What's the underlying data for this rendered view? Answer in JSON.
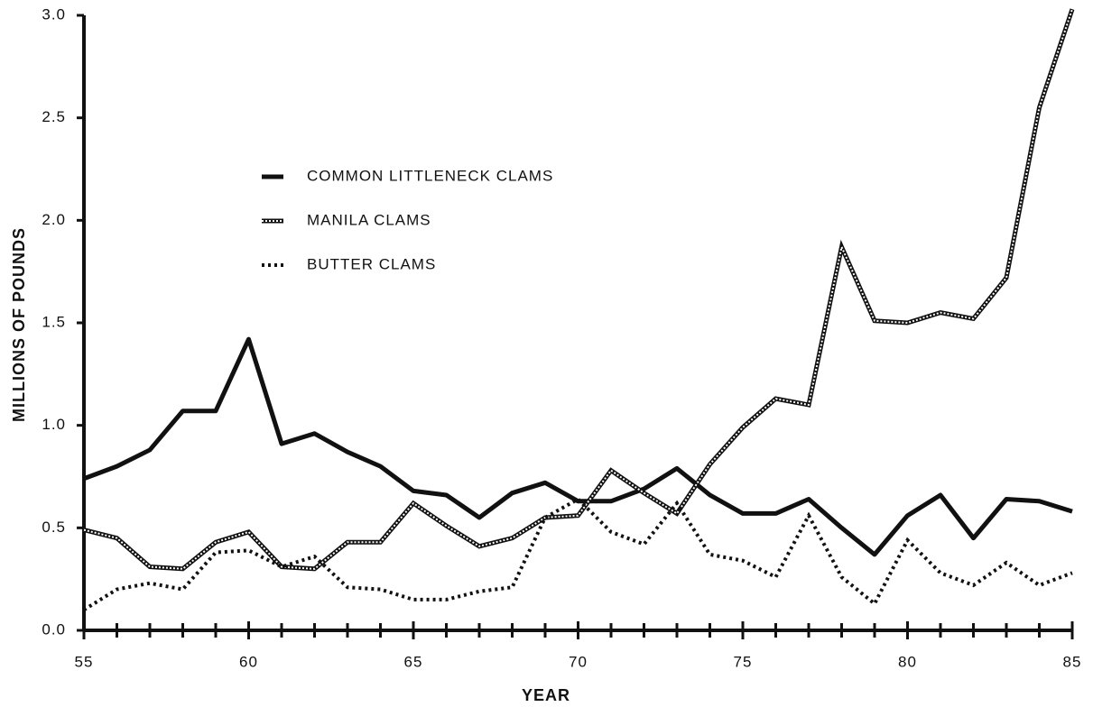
{
  "chart_data": {
    "type": "line",
    "x_label": "YEAR",
    "y_label": "MILLIONS OF POUNDS",
    "x": [
      55,
      56,
      57,
      58,
      59,
      60,
      61,
      62,
      63,
      64,
      65,
      66,
      67,
      68,
      69,
      70,
      71,
      72,
      73,
      74,
      75,
      76,
      77,
      78,
      79,
      80,
      81,
      82,
      83,
      84,
      85
    ],
    "series": [
      {
        "name": "COMMON LITTLENECK CLAMS",
        "color": "#111111",
        "line_style": "solid",
        "values": [
          0.74,
          0.8,
          0.88,
          1.07,
          1.07,
          1.42,
          0.91,
          0.96,
          0.87,
          0.8,
          0.68,
          0.66,
          0.55,
          0.67,
          0.72,
          0.63,
          0.63,
          0.69,
          0.79,
          0.66,
          0.57,
          0.57,
          0.64,
          0.5,
          0.37,
          0.56,
          0.66,
          0.45,
          0.64,
          0.63,
          0.58
        ]
      },
      {
        "name": "MANILA CLAMS",
        "color": "#111111",
        "line_style": "hollow",
        "values": [
          0.49,
          0.45,
          0.31,
          0.3,
          0.43,
          0.48,
          0.31,
          0.3,
          0.43,
          0.43,
          0.62,
          0.51,
          0.41,
          0.45,
          0.55,
          0.56,
          0.78,
          0.67,
          0.57,
          0.81,
          0.99,
          1.13,
          1.1,
          1.87,
          1.51,
          1.5,
          1.55,
          1.52,
          1.72,
          2.55,
          3.03
        ]
      },
      {
        "name": "BUTTER CLAMS",
        "color": "#111111",
        "line_style": "dotted",
        "values": [
          0.1,
          0.2,
          0.23,
          0.2,
          0.38,
          0.39,
          0.31,
          0.36,
          0.21,
          0.2,
          0.15,
          0.15,
          0.19,
          0.21,
          0.55,
          0.64,
          0.48,
          0.42,
          0.62,
          0.37,
          0.34,
          0.26,
          0.56,
          0.26,
          0.13,
          0.44,
          0.28,
          0.22,
          0.33,
          0.22,
          0.28
        ]
      }
    ],
    "xlim": [
      55,
      85
    ],
    "xticks": [
      55,
      60,
      65,
      70,
      75,
      80,
      85
    ],
    "ylim": [
      0,
      3
    ],
    "yticks": [
      {
        "value": 0,
        "label": "0.0"
      },
      0.5,
      {
        "value": 1,
        "label": "1.0"
      },
      1.5,
      {
        "value": 2,
        "label": "2.0"
      },
      2.5,
      {
        "value": 3,
        "label": "3.0"
      }
    ],
    "legend": "upper left",
    "grid": false
  }
}
